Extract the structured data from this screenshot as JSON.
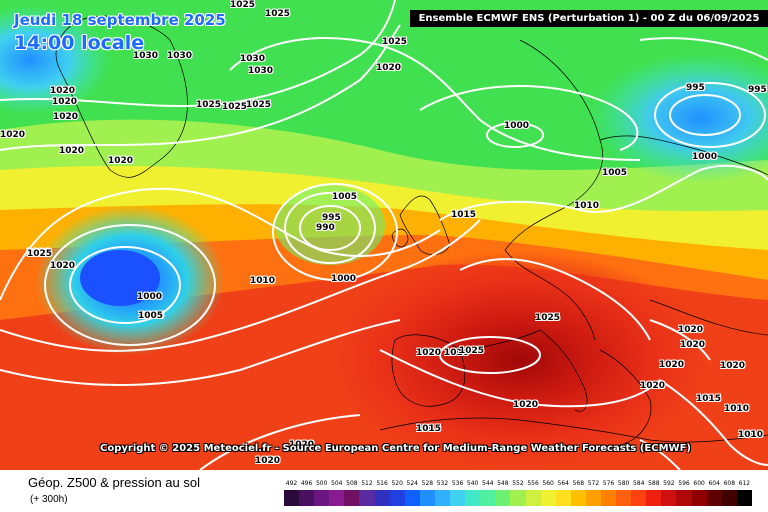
{
  "header": {
    "date": "Jeudi 18 septembre 2025",
    "local_time": "14:00 locale",
    "model_run": "Ensemble ECMWF ENS  (Perturbation 1)  -  00 Z du 06/09/2025"
  },
  "copyright": "Copyright © 2025 Meteociel.fr - Source European Centre for Medium-Range Weather Forecasts (ECMWF)",
  "legend": {
    "field": "Géop. Z500 & pression au sol",
    "lead_time": "(+ 300h)",
    "scale_values": [
      "492",
      "496",
      "500",
      "504",
      "508",
      "512",
      "516",
      "520",
      "524",
      "528",
      "532",
      "536",
      "540",
      "544",
      "548",
      "552",
      "556",
      "560",
      "564",
      "568",
      "572",
      "576",
      "580",
      "584",
      "588",
      "592",
      "596",
      "600",
      "604",
      "608",
      "612"
    ],
    "scale_colors": [
      "#2a0a3a",
      "#4a1060",
      "#6a1580",
      "#8a1a90",
      "#701060",
      "#5a2aa0",
      "#3030c0",
      "#2040e0",
      "#1060ff",
      "#2090ff",
      "#30b0ff",
      "#40d0f0",
      "#40e8c8",
      "#50f0a0",
      "#70f070",
      "#a0f050",
      "#d0f040",
      "#f0f030",
      "#ffe020",
      "#ffc000",
      "#ffa000",
      "#ff8000",
      "#ff6010",
      "#ff4010",
      "#f02010",
      "#d01010",
      "#b00808",
      "#900000",
      "#600000",
      "#400000",
      "#000000"
    ]
  },
  "pressure_labels": [
    "1025",
    "1025",
    "1030",
    "1030",
    "1030",
    "1030",
    "1025",
    "1020",
    "1020",
    "1020",
    "1020",
    "1020",
    "1020",
    "1025",
    "1025",
    "1025",
    "1020",
    "1020",
    "1000",
    "995",
    "995",
    "1000",
    "1005",
    "1005",
    "995",
    "990",
    "1015",
    "1010",
    "1005",
    "1025",
    "1020",
    "1010",
    "1000",
    "1000",
    "1005",
    "1025",
    "1020",
    "1010",
    "1025",
    "1020",
    "1020",
    "1020",
    "1020",
    "1020",
    "1015",
    "1010",
    "1010",
    "1020",
    "1015",
    "1020",
    "1020"
  ],
  "colors": {
    "ridge_core": "#8b0000",
    "ridge": "#e62a1a",
    "low_core": "#1e6bff",
    "title_blue": "#1e6bff"
  }
}
